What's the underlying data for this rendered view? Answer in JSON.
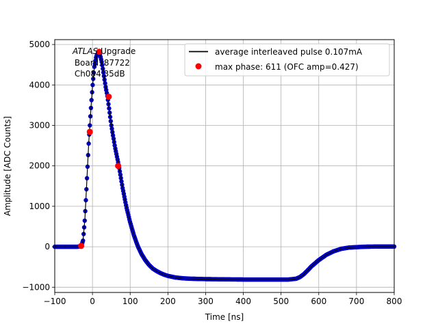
{
  "chart_data": {
    "type": "scatter",
    "title": "",
    "xlabel": "Time [ns]",
    "ylabel": "Amplitude [ADC Counts]",
    "xlim": [
      -100,
      800
    ],
    "ylim": [
      -1130,
      5120
    ],
    "xticks": [
      -100,
      0,
      100,
      200,
      300,
      400,
      500,
      600,
      700,
      800
    ],
    "xtick_labels": [
      "−100",
      "0",
      "100",
      "200",
      "300",
      "400",
      "500",
      "600",
      "700",
      "800"
    ],
    "yticks": [
      -1000,
      0,
      1000,
      2000,
      3000,
      4000,
      5000
    ],
    "ytick_labels": [
      "−1000",
      "0",
      "1000",
      "2000",
      "3000",
      "4000",
      "5000"
    ],
    "grid": true,
    "legend_position": "top-right",
    "annotation": {
      "line1_italic": "ATLAS",
      "line1_rest": " Upgrade",
      "line2": " Board187722",
      "line3": " Ch084 35dB"
    },
    "series": [
      {
        "name": "average interleaved pulse 0.107mA",
        "kind": "line-with-markers",
        "color": "#000000",
        "marker_color": "#0000cc",
        "x": [
          -100,
          -60,
          -40,
          -30,
          -25,
          -20,
          -15,
          -10,
          -5,
          0,
          5,
          10,
          15,
          20,
          25,
          30,
          35,
          40,
          45,
          50,
          60,
          70,
          80,
          90,
          100,
          110,
          120,
          130,
          140,
          150,
          160,
          170,
          180,
          190,
          200,
          220,
          240,
          260,
          280,
          300,
          350,
          400,
          450,
          500,
          520,
          540,
          550,
          560,
          570,
          580,
          600,
          620,
          640,
          660,
          680,
          700,
          720,
          750,
          780,
          800
        ],
        "y": [
          0,
          0,
          0,
          10,
          150,
          700,
          1600,
          2550,
          3300,
          3950,
          4450,
          4700,
          4800,
          4750,
          4550,
          4250,
          3950,
          3700,
          3350,
          3000,
          2450,
          2000,
          1450,
          980,
          600,
          280,
          20,
          -180,
          -330,
          -450,
          -540,
          -600,
          -650,
          -690,
          -720,
          -760,
          -780,
          -790,
          -795,
          -800,
          -805,
          -810,
          -810,
          -810,
          -810,
          -790,
          -750,
          -680,
          -590,
          -490,
          -330,
          -200,
          -110,
          -50,
          -20,
          -10,
          0,
          5,
          5,
          5
        ]
      },
      {
        "name": "max phase: 611 (OFC amp=0.427)",
        "kind": "points",
        "color": "#ff0000",
        "x": [
          -30,
          -7,
          18,
          43,
          68
        ],
        "y": [
          20,
          2840,
          4820,
          3710,
          2000
        ]
      }
    ]
  }
}
